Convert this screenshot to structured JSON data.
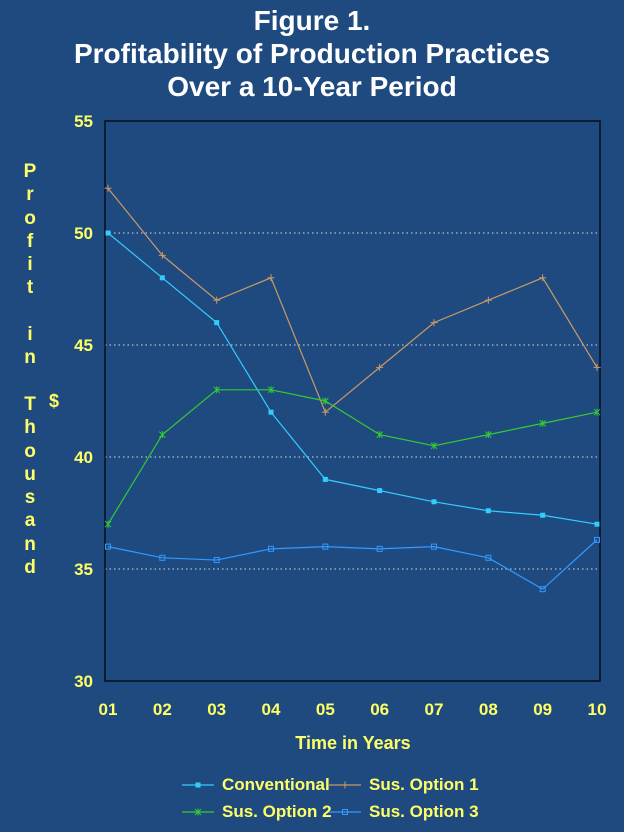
{
  "title": {
    "line1": "Figure 1.",
    "line2": "Profitability of Production Practices",
    "line3": "Over a 10-Year Period"
  },
  "colors": {
    "background": "#1f4a80",
    "title": "#ffffff",
    "labels": "#ffff66",
    "grid": "#d9d9d9"
  },
  "chart_data": {
    "type": "line",
    "title": "Figure 1. Profitability of Production Practices Over a 10-Year Period",
    "xlabel": "Time in Years",
    "ylabel": "Profit in Thousand",
    "ylabel_unit": "$",
    "categories": [
      "01",
      "02",
      "03",
      "04",
      "05",
      "06",
      "07",
      "08",
      "09",
      "10"
    ],
    "ylim": [
      30,
      55
    ],
    "yticks": [
      "30",
      "35",
      "40",
      "45",
      "50",
      "55"
    ],
    "grid": "horizontal dotted",
    "legend_position": "bottom",
    "series": [
      {
        "name": "Conventional",
        "color": "#33ccff",
        "marker": "square",
        "values": [
          50,
          48,
          46,
          42,
          39,
          38.5,
          38,
          37.6,
          37.4,
          37
        ]
      },
      {
        "name": "Sus. Option 1",
        "color": "#cc9966",
        "marker": "plus",
        "values": [
          52,
          49,
          47,
          48,
          42,
          44,
          46,
          47,
          48,
          44
        ]
      },
      {
        "name": "Sus. Option 2",
        "color": "#33cc33",
        "marker": "star",
        "values": [
          37,
          41,
          43,
          43,
          42.5,
          41,
          40.5,
          41,
          41.5,
          42
        ]
      },
      {
        "name": "Sus. Option 3",
        "color": "#3399ff",
        "marker": "open-square",
        "values": [
          36,
          35.5,
          35.4,
          35.9,
          36,
          35.9,
          36,
          35.5,
          34.1,
          36.3
        ]
      }
    ]
  }
}
